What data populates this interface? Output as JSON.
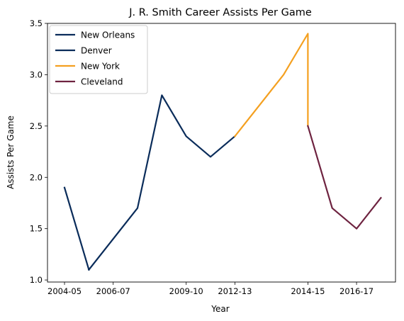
{
  "chart_data": {
    "type": "line",
    "title": "J. R. Smith Career Assists Per Game",
    "xlabel": "Year",
    "ylabel": "Assists Per Game",
    "x_ticks": [
      "2004-05",
      "2006-07",
      "2009-10",
      "2012-13",
      "2014-15",
      "2016-17"
    ],
    "x_tick_positions": [
      0,
      2,
      5,
      7,
      10,
      12
    ],
    "y_ticks": [
      "1.0",
      "1.5",
      "2.0",
      "2.5",
      "3.0",
      "3.5"
    ],
    "xlim": [
      -0.7,
      13.6
    ],
    "ylim": [
      0.98,
      3.5
    ],
    "legend_placement": "top-left",
    "series": [
      {
        "name": "New Orleans",
        "color": "#0a2c5a",
        "x": [
          0,
          1
        ],
        "y": [
          1.9,
          1.1
        ]
      },
      {
        "name": "Denver",
        "color": "#0a2c5a",
        "x": [
          1,
          3,
          4,
          5,
          6,
          7
        ],
        "y": [
          1.1,
          1.7,
          2.8,
          2.4,
          2.2,
          2.4
        ]
      },
      {
        "name": "New York",
        "color": "#f4a020",
        "x": [
          7,
          9,
          10,
          10
        ],
        "y": [
          2.4,
          3.0,
          3.4,
          2.5
        ]
      },
      {
        "name": "Cleveland",
        "color": "#6e2340",
        "x": [
          10,
          11,
          12,
          13
        ],
        "y": [
          2.5,
          1.7,
          1.5,
          1.8
        ]
      }
    ]
  }
}
